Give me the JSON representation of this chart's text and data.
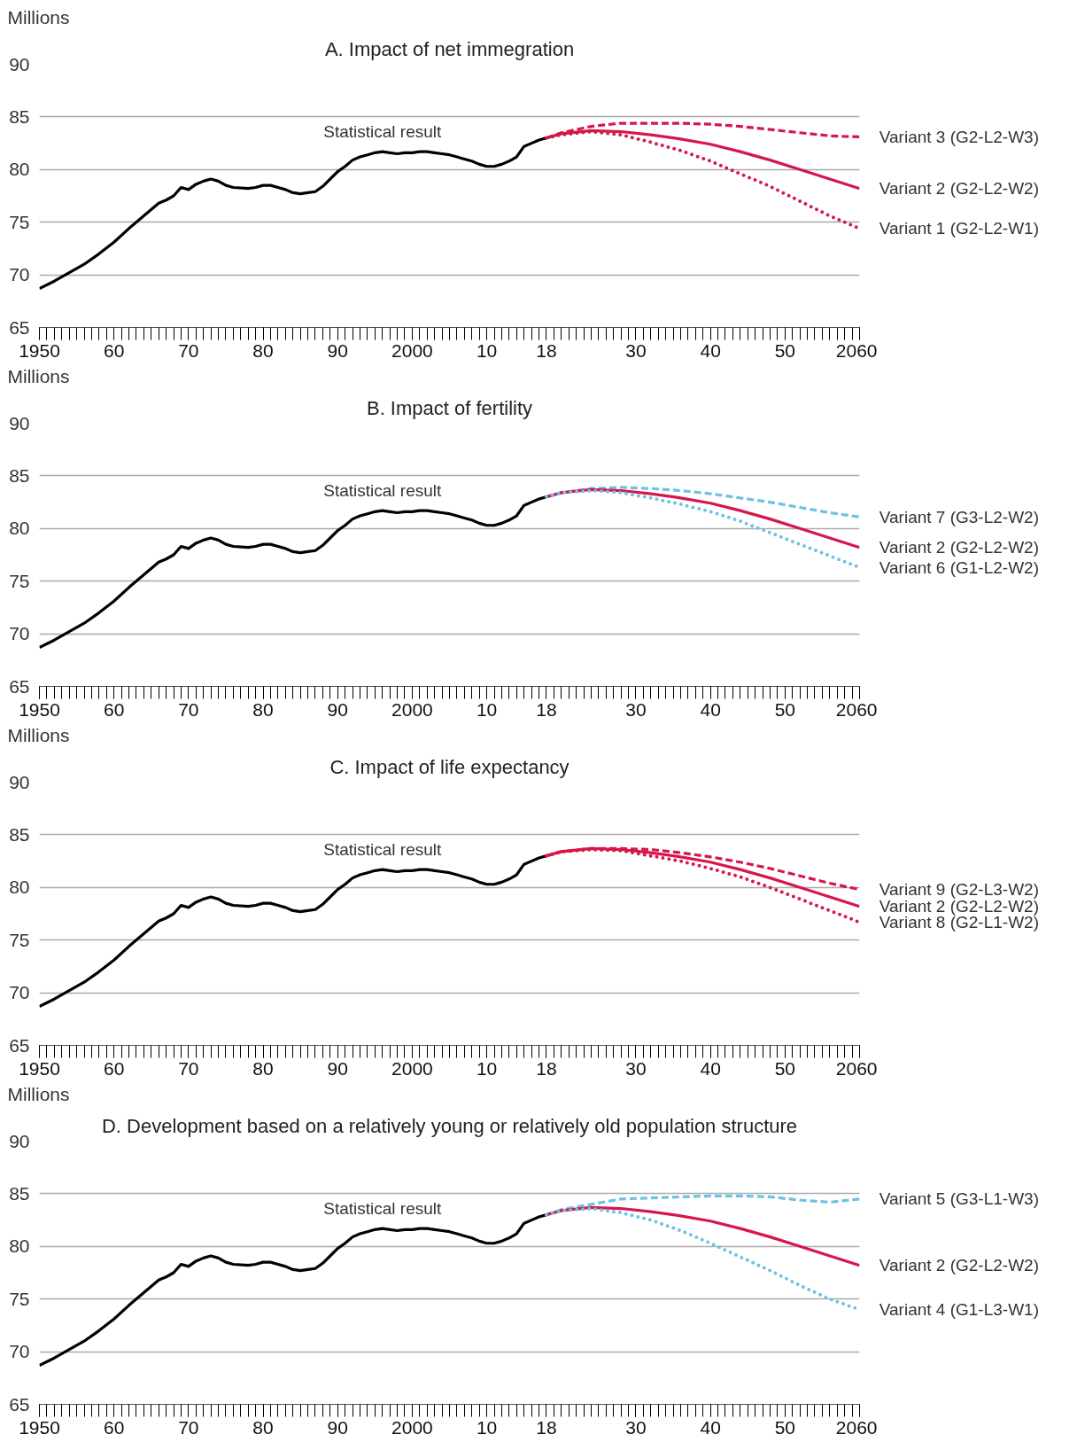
{
  "chart_data": [
    {
      "type": "line",
      "title": "A. Impact of net immegration",
      "ylabel": "Millions",
      "xlim": [
        1950,
        2060
      ],
      "ylim": [
        65,
        90
      ],
      "yticks": [
        65,
        70,
        75,
        80,
        85,
        90
      ],
      "xticks": [
        1950,
        {
          "value": 1960,
          "label": "60"
        },
        {
          "value": 1970,
          "label": "70"
        },
        {
          "value": 1980,
          "label": "80"
        },
        {
          "value": 1990,
          "label": "90"
        },
        2000,
        {
          "value": 2010,
          "label": "10"
        },
        {
          "value": 2018,
          "label": "18"
        },
        {
          "value": 2030,
          "label": "30"
        },
        {
          "value": 2040,
          "label": "40"
        },
        {
          "value": 2050,
          "label": "50"
        },
        2060
      ],
      "grid": "y",
      "series": [
        {
          "name": "Statistical result",
          "color": "#000000",
          "line_style": "solid",
          "x": [
            1950,
            1952,
            1954,
            1956,
            1958,
            1960,
            1962,
            1964,
            1966,
            1967,
            1968,
            1969,
            1970,
            1971,
            1972,
            1973,
            1974,
            1975,
            1976,
            1978,
            1979,
            1980,
            1981,
            1982,
            1983,
            1984,
            1985,
            1986,
            1987,
            1988,
            1989,
            1990,
            1991,
            1992,
            1993,
            1994,
            1995,
            1996,
            1997,
            1998,
            1999,
            2000,
            2001,
            2002,
            2003,
            2004,
            2005,
            2006,
            2007,
            2008,
            2009,
            2010,
            2011,
            2012,
            2013,
            2014,
            2015,
            2016,
            2017,
            2018
          ],
          "values": [
            68.7,
            69.4,
            70.2,
            71.0,
            72.0,
            73.1,
            74.4,
            75.6,
            76.8,
            77.1,
            77.5,
            78.3,
            78.1,
            78.6,
            78.9,
            79.1,
            78.9,
            78.5,
            78.3,
            78.2,
            78.3,
            78.5,
            78.5,
            78.3,
            78.1,
            77.8,
            77.7,
            77.8,
            77.9,
            78.4,
            79.1,
            79.8,
            80.3,
            80.9,
            81.2,
            81.4,
            81.6,
            81.7,
            81.6,
            81.5,
            81.6,
            81.6,
            81.7,
            81.7,
            81.6,
            81.5,
            81.4,
            81.2,
            81.0,
            80.8,
            80.5,
            80.3,
            80.3,
            80.5,
            80.8,
            81.2,
            82.2,
            82.5,
            82.8,
            83.0
          ]
        },
        {
          "name": "Variant 3 (G2-L2-W3)",
          "color": "#d7164b",
          "line_style": "dashed",
          "x": [
            2018,
            2020,
            2024,
            2028,
            2032,
            2036,
            2040,
            2044,
            2048,
            2052,
            2056,
            2060
          ],
          "values": [
            83.0,
            83.5,
            84.1,
            84.4,
            84.4,
            84.4,
            84.3,
            84.1,
            83.8,
            83.5,
            83.2,
            83.1
          ]
        },
        {
          "name": "Variant 2 (G2-L2-W2)",
          "color": "#d7164b",
          "line_style": "solid",
          "x": [
            2018,
            2020,
            2024,
            2028,
            2032,
            2036,
            2040,
            2044,
            2048,
            2052,
            2056,
            2060
          ],
          "values": [
            83.0,
            83.4,
            83.7,
            83.6,
            83.3,
            82.9,
            82.4,
            81.7,
            80.9,
            80.0,
            79.1,
            78.2
          ]
        },
        {
          "name": "Variant 1 (G2-L2-W1)",
          "color": "#d7164b",
          "line_style": "dotted",
          "x": [
            2018,
            2020,
            2024,
            2028,
            2032,
            2036,
            2040,
            2044,
            2048,
            2052,
            2056,
            2060
          ],
          "values": [
            83.0,
            83.3,
            83.6,
            83.3,
            82.6,
            81.8,
            80.8,
            79.6,
            78.4,
            77.0,
            75.6,
            74.4
          ]
        }
      ]
    },
    {
      "type": "line",
      "title": "B. Impact of fertility",
      "ylabel": "Millions",
      "xlim": [
        1950,
        2060
      ],
      "ylim": [
        65,
        90
      ],
      "yticks": [
        65,
        70,
        75,
        80,
        85,
        90
      ],
      "xticks": [
        1950,
        {
          "value": 1960,
          "label": "60"
        },
        {
          "value": 1970,
          "label": "70"
        },
        {
          "value": 1980,
          "label": "80"
        },
        {
          "value": 1990,
          "label": "90"
        },
        2000,
        {
          "value": 2010,
          "label": "10"
        },
        {
          "value": 2018,
          "label": "18"
        },
        {
          "value": 2030,
          "label": "30"
        },
        {
          "value": 2040,
          "label": "40"
        },
        {
          "value": 2050,
          "label": "50"
        },
        2060
      ],
      "grid": "y",
      "series": [
        {
          "name": "Statistical result",
          "color": "#000000",
          "line_style": "solid",
          "x": [
            1950,
            1952,
            1954,
            1956,
            1958,
            1960,
            1962,
            1964,
            1966,
            1967,
            1968,
            1969,
            1970,
            1971,
            1972,
            1973,
            1974,
            1975,
            1976,
            1978,
            1979,
            1980,
            1981,
            1982,
            1983,
            1984,
            1985,
            1986,
            1987,
            1988,
            1989,
            1990,
            1991,
            1992,
            1993,
            1994,
            1995,
            1996,
            1997,
            1998,
            1999,
            2000,
            2001,
            2002,
            2003,
            2004,
            2005,
            2006,
            2007,
            2008,
            2009,
            2010,
            2011,
            2012,
            2013,
            2014,
            2015,
            2016,
            2017,
            2018
          ],
          "values": [
            68.7,
            69.4,
            70.2,
            71.0,
            72.0,
            73.1,
            74.4,
            75.6,
            76.8,
            77.1,
            77.5,
            78.3,
            78.1,
            78.6,
            78.9,
            79.1,
            78.9,
            78.5,
            78.3,
            78.2,
            78.3,
            78.5,
            78.5,
            78.3,
            78.1,
            77.8,
            77.7,
            77.8,
            77.9,
            78.4,
            79.1,
            79.8,
            80.3,
            80.9,
            81.2,
            81.4,
            81.6,
            81.7,
            81.6,
            81.5,
            81.6,
            81.6,
            81.7,
            81.7,
            81.6,
            81.5,
            81.4,
            81.2,
            81.0,
            80.8,
            80.5,
            80.3,
            80.3,
            80.5,
            80.8,
            81.2,
            82.2,
            82.5,
            82.8,
            83.0
          ]
        },
        {
          "name": "Variant 7 (G3-L2-W2)",
          "color": "#6ec1e4",
          "line_style": "dashed",
          "x": [
            2018,
            2020,
            2024,
            2028,
            2032,
            2036,
            2040,
            2044,
            2048,
            2052,
            2056,
            2060
          ],
          "values": [
            83.0,
            83.4,
            83.8,
            83.9,
            83.8,
            83.6,
            83.3,
            82.9,
            82.5,
            82.0,
            81.5,
            81.1
          ]
        },
        {
          "name": "Variant 2 (G2-L2-W2)",
          "color": "#d7164b",
          "line_style": "solid",
          "x": [
            2018,
            2020,
            2024,
            2028,
            2032,
            2036,
            2040,
            2044,
            2048,
            2052,
            2056,
            2060
          ],
          "values": [
            83.0,
            83.4,
            83.7,
            83.6,
            83.3,
            82.9,
            82.4,
            81.7,
            80.9,
            80.0,
            79.1,
            78.2
          ]
        },
        {
          "name": "Variant 6 (G1-L2-W2)",
          "color": "#6ec1e4",
          "line_style": "dotted",
          "x": [
            2018,
            2020,
            2024,
            2028,
            2032,
            2036,
            2040,
            2044,
            2048,
            2052,
            2056,
            2060
          ],
          "values": [
            83.0,
            83.4,
            83.6,
            83.4,
            82.9,
            82.3,
            81.6,
            80.7,
            79.6,
            78.5,
            77.4,
            76.3
          ]
        }
      ]
    },
    {
      "type": "line",
      "title": "C. Impact of life expectancy",
      "ylabel": "Millions",
      "xlim": [
        1950,
        2060
      ],
      "ylim": [
        65,
        90
      ],
      "yticks": [
        65,
        70,
        75,
        80,
        85,
        90
      ],
      "xticks": [
        1950,
        {
          "value": 1960,
          "label": "60"
        },
        {
          "value": 1970,
          "label": "70"
        },
        {
          "value": 1980,
          "label": "80"
        },
        {
          "value": 1990,
          "label": "90"
        },
        2000,
        {
          "value": 2010,
          "label": "10"
        },
        {
          "value": 2018,
          "label": "18"
        },
        {
          "value": 2030,
          "label": "30"
        },
        {
          "value": 2040,
          "label": "40"
        },
        {
          "value": 2050,
          "label": "50"
        },
        2060
      ],
      "grid": "y",
      "series": [
        {
          "name": "Statistical result",
          "color": "#000000",
          "line_style": "solid",
          "x": [
            1950,
            1952,
            1954,
            1956,
            1958,
            1960,
            1962,
            1964,
            1966,
            1967,
            1968,
            1969,
            1970,
            1971,
            1972,
            1973,
            1974,
            1975,
            1976,
            1978,
            1979,
            1980,
            1981,
            1982,
            1983,
            1984,
            1985,
            1986,
            1987,
            1988,
            1989,
            1990,
            1991,
            1992,
            1993,
            1994,
            1995,
            1996,
            1997,
            1998,
            1999,
            2000,
            2001,
            2002,
            2003,
            2004,
            2005,
            2006,
            2007,
            2008,
            2009,
            2010,
            2011,
            2012,
            2013,
            2014,
            2015,
            2016,
            2017,
            2018
          ],
          "values": [
            68.7,
            69.4,
            70.2,
            71.0,
            72.0,
            73.1,
            74.4,
            75.6,
            76.8,
            77.1,
            77.5,
            78.3,
            78.1,
            78.6,
            78.9,
            79.1,
            78.9,
            78.5,
            78.3,
            78.2,
            78.3,
            78.5,
            78.5,
            78.3,
            78.1,
            77.8,
            77.7,
            77.8,
            77.9,
            78.4,
            79.1,
            79.8,
            80.3,
            80.9,
            81.2,
            81.4,
            81.6,
            81.7,
            81.6,
            81.5,
            81.6,
            81.6,
            81.7,
            81.7,
            81.6,
            81.5,
            81.4,
            81.2,
            81.0,
            80.8,
            80.5,
            80.3,
            80.3,
            80.5,
            80.8,
            81.2,
            82.2,
            82.5,
            82.8,
            83.0
          ]
        },
        {
          "name": "Variant 9 (G2-L3-W2)",
          "color": "#d7164b",
          "line_style": "dashed",
          "x": [
            2018,
            2020,
            2024,
            2028,
            2032,
            2036,
            2040,
            2044,
            2048,
            2052,
            2056,
            2060
          ],
          "values": [
            83.0,
            83.4,
            83.7,
            83.7,
            83.6,
            83.3,
            82.9,
            82.4,
            81.8,
            81.1,
            80.4,
            79.8
          ]
        },
        {
          "name": "Variant 2 (G2-L2-W2)",
          "color": "#d7164b",
          "line_style": "solid",
          "x": [
            2018,
            2020,
            2024,
            2028,
            2032,
            2036,
            2040,
            2044,
            2048,
            2052,
            2056,
            2060
          ],
          "values": [
            83.0,
            83.4,
            83.7,
            83.6,
            83.3,
            82.9,
            82.4,
            81.7,
            80.9,
            80.0,
            79.1,
            78.2
          ]
        },
        {
          "name": "Variant 8 (G2-L1-W2)",
          "color": "#d7164b",
          "line_style": "dotted",
          "x": [
            2018,
            2020,
            2024,
            2028,
            2032,
            2036,
            2040,
            2044,
            2048,
            2052,
            2056,
            2060
          ],
          "values": [
            83.0,
            83.4,
            83.6,
            83.5,
            83.0,
            82.5,
            81.8,
            81.0,
            80.0,
            78.9,
            77.8,
            76.7
          ]
        }
      ]
    },
    {
      "type": "line",
      "title": "D. Development based on a relatively young or relatively old population structure",
      "ylabel": "Millions",
      "xlim": [
        1950,
        2060
      ],
      "ylim": [
        65,
        90
      ],
      "yticks": [
        65,
        70,
        75,
        80,
        85,
        90
      ],
      "xticks": [
        1950,
        {
          "value": 1960,
          "label": "60"
        },
        {
          "value": 1970,
          "label": "70"
        },
        {
          "value": 1980,
          "label": "80"
        },
        {
          "value": 1990,
          "label": "90"
        },
        2000,
        {
          "value": 2010,
          "label": "10"
        },
        {
          "value": 2018,
          "label": "18"
        },
        {
          "value": 2030,
          "label": "30"
        },
        {
          "value": 2040,
          "label": "40"
        },
        {
          "value": 2050,
          "label": "50"
        },
        2060
      ],
      "grid": "y",
      "series": [
        {
          "name": "Statistical result",
          "color": "#000000",
          "line_style": "solid",
          "x": [
            1950,
            1952,
            1954,
            1956,
            1958,
            1960,
            1962,
            1964,
            1966,
            1967,
            1968,
            1969,
            1970,
            1971,
            1972,
            1973,
            1974,
            1975,
            1976,
            1978,
            1979,
            1980,
            1981,
            1982,
            1983,
            1984,
            1985,
            1986,
            1987,
            1988,
            1989,
            1990,
            1991,
            1992,
            1993,
            1994,
            1995,
            1996,
            1997,
            1998,
            1999,
            2000,
            2001,
            2002,
            2003,
            2004,
            2005,
            2006,
            2007,
            2008,
            2009,
            2010,
            2011,
            2012,
            2013,
            2014,
            2015,
            2016,
            2017,
            2018
          ],
          "values": [
            68.7,
            69.4,
            70.2,
            71.0,
            72.0,
            73.1,
            74.4,
            75.6,
            76.8,
            77.1,
            77.5,
            78.3,
            78.1,
            78.6,
            78.9,
            79.1,
            78.9,
            78.5,
            78.3,
            78.2,
            78.3,
            78.5,
            78.5,
            78.3,
            78.1,
            77.8,
            77.7,
            77.8,
            77.9,
            78.4,
            79.1,
            79.8,
            80.3,
            80.9,
            81.2,
            81.4,
            81.6,
            81.7,
            81.6,
            81.5,
            81.6,
            81.6,
            81.7,
            81.7,
            81.6,
            81.5,
            81.4,
            81.2,
            81.0,
            80.8,
            80.5,
            80.3,
            80.3,
            80.5,
            80.8,
            81.2,
            82.2,
            82.5,
            82.8,
            83.0
          ]
        },
        {
          "name": "Variant 5 (G3-L1-W3)",
          "color": "#6ec1e4",
          "line_style": "dashed",
          "x": [
            2018,
            2020,
            2024,
            2028,
            2032,
            2036,
            2040,
            2044,
            2048,
            2052,
            2056,
            2060
          ],
          "values": [
            83.0,
            83.5,
            84.0,
            84.5,
            84.6,
            84.7,
            84.8,
            84.8,
            84.7,
            84.4,
            84.2,
            84.5
          ]
        },
        {
          "name": "Variant 2 (G2-L2-W2)",
          "color": "#d7164b",
          "line_style": "solid",
          "x": [
            2018,
            2020,
            2024,
            2028,
            2032,
            2036,
            2040,
            2044,
            2048,
            2052,
            2056,
            2060
          ],
          "values": [
            83.0,
            83.4,
            83.7,
            83.6,
            83.3,
            82.9,
            82.4,
            81.7,
            80.9,
            80.0,
            79.1,
            78.2
          ]
        },
        {
          "name": "Variant 4 (G1-L3-W1)",
          "color": "#6ec1e4",
          "line_style": "dotted",
          "x": [
            2018,
            2020,
            2024,
            2028,
            2032,
            2036,
            2040,
            2044,
            2048,
            2052,
            2056,
            2060
          ],
          "values": [
            83.0,
            83.4,
            83.6,
            83.2,
            82.5,
            81.5,
            80.3,
            79.0,
            77.7,
            76.3,
            75.0,
            74.0
          ]
        }
      ]
    }
  ]
}
